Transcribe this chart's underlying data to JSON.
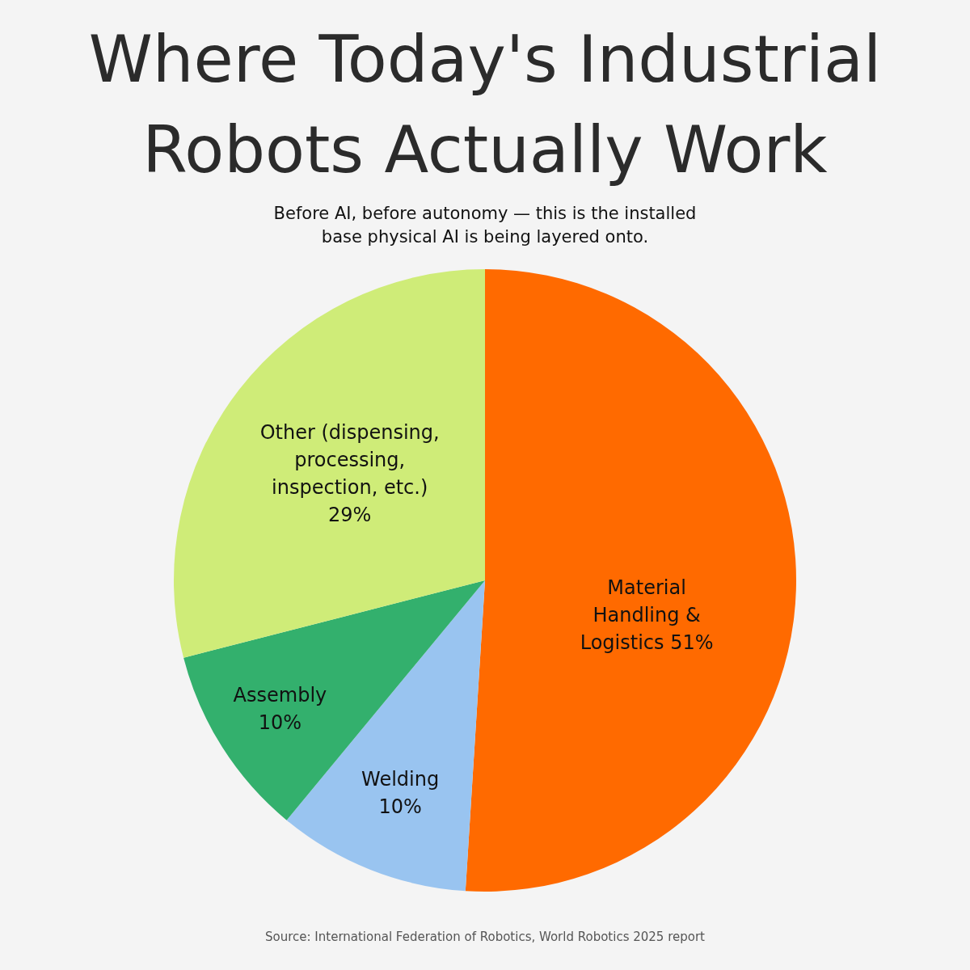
{
  "chart_data": {
    "type": "pie",
    "title": "Where Today's Industrial Robots Actually Work",
    "subtitle": "Before AI, before autonomy — this is the installed base physical AI is being layered onto.",
    "categories": [
      "Material Handling & Logistics",
      "Welding",
      "Assembly",
      "Other (dispensing, processing, inspection, etc.)"
    ],
    "values": [
      51,
      10,
      10,
      29
    ],
    "colors": [
      "#ff6a00",
      "#99c4f0",
      "#33b06d",
      "#cfec78"
    ],
    "value_labels": [
      "51%",
      "10%",
      "10%",
      "29%"
    ],
    "annotations": [
      "Source: International Federation of Robotics, World Robotics 2025 report"
    ]
  }
}
